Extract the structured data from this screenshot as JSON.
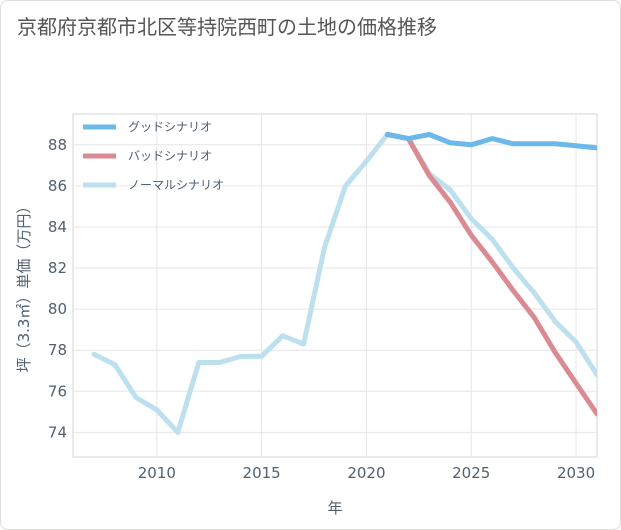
{
  "title": "京都府京都市北区等持院西町の土地の価格推移",
  "chart_data": {
    "type": "line",
    "xlabel": "年",
    "ylabel": "坪（3.3㎡）単価（万円）",
    "xlim": [
      2006,
      2031
    ],
    "ylim": [
      72.8,
      89.5
    ],
    "xticks": [
      2010,
      2015,
      2020,
      2025,
      2030
    ],
    "yticks": [
      74,
      76,
      78,
      80,
      82,
      84,
      86,
      88
    ],
    "grid": true,
    "legend_position": "top-left",
    "series": [
      {
        "name": "グッドシナリオ",
        "color": "#6cb8ea",
        "x": [
          2021,
          2022,
          2023,
          2024,
          2025,
          2026,
          2027,
          2028,
          2029,
          2030,
          2031
        ],
        "values": [
          88.5,
          88.3,
          88.5,
          88.1,
          88.0,
          88.3,
          88.05,
          88.05,
          88.05,
          87.95,
          87.85
        ]
      },
      {
        "name": "バッドシナリオ",
        "color": "#dc8a92",
        "x": [
          2021,
          2022,
          2023,
          2024,
          2025,
          2026,
          2027,
          2028,
          2029,
          2030,
          2031
        ],
        "values": [
          88.5,
          88.3,
          86.5,
          85.2,
          83.6,
          82.3,
          80.9,
          79.6,
          77.9,
          76.4,
          74.9
        ]
      },
      {
        "name": "ノーマルシナリオ",
        "color": "#bde0ee",
        "x": [
          2007,
          2008,
          2009,
          2010,
          2011,
          2012,
          2013,
          2014,
          2015,
          2016,
          2017,
          2018,
          2019,
          2020,
          2021,
          2022,
          2023,
          2024,
          2025,
          2026,
          2027,
          2028,
          2029,
          2030,
          2031
        ],
        "values": [
          77.8,
          77.3,
          75.7,
          75.1,
          74.0,
          77.4,
          77.4,
          77.7,
          77.7,
          78.7,
          78.3,
          83.0,
          86.0,
          87.2,
          88.5,
          88.3,
          86.6,
          85.8,
          84.4,
          83.4,
          82.0,
          80.8,
          79.4,
          78.4,
          76.8
        ]
      }
    ]
  }
}
